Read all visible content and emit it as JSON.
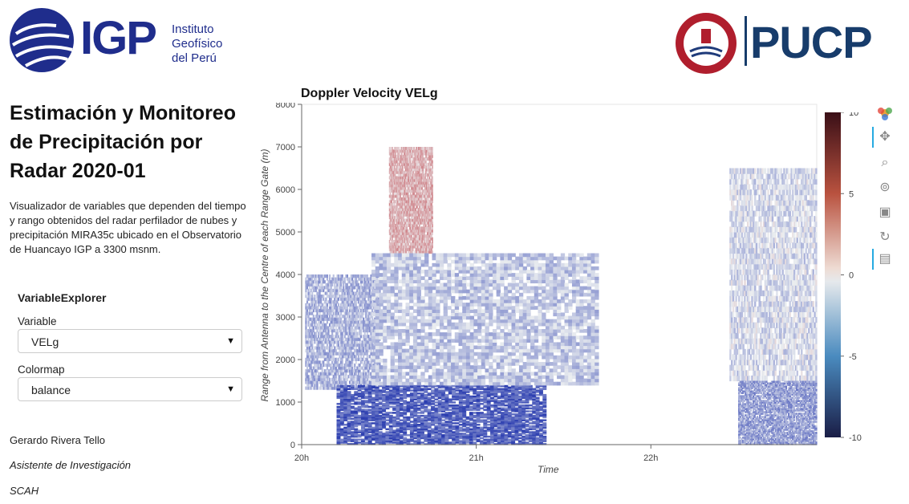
{
  "logos": {
    "igp": {
      "text": "IGP",
      "subtitle_lines": [
        "Instituto",
        "Geofísico",
        "del Perú"
      ]
    },
    "pucp": {
      "text": "PUCP"
    }
  },
  "sidebar": {
    "title": "Estimación y Monitoreo de Precipitación por Radar 2020-01",
    "description": "Visualizador de variables que dependen del tiempo y rango obtenidos del radar perfilador de nubes y precipitación MIRA35c ubicado en el Observatorio de Huancayo IGP a 3300 msnm.",
    "explorer_title": "VariableExplorer",
    "variable": {
      "label": "Variable",
      "value": "VELg"
    },
    "colormap": {
      "label": "Colormap",
      "value": "balance"
    },
    "author": "Gerardo Rivera Tello",
    "role": "Asistente de Investigación",
    "dept": "SCAH"
  },
  "plot": {
    "title": "Doppler Velocity VELg",
    "xlabel": "Time",
    "ylabel": "Range from Antenna to the Centre of each Range Gate (m)"
  },
  "toolbar": {
    "tools": [
      "bokeh-logo-icon",
      "pan-icon",
      "box-zoom-icon",
      "wheel-zoom-icon",
      "save-icon",
      "reset-icon",
      "hover-icon"
    ]
  },
  "chart_data": {
    "type": "heatmap",
    "title": "Doppler Velocity VELg",
    "xlabel": "Time",
    "ylabel": "Range from Antenna to the Centre of each Range Gate (m)",
    "x_ticks": [
      "20h",
      "21h",
      "22h"
    ],
    "x_range_hours": [
      20.0,
      22.95
    ],
    "y_ticks": [
      0,
      1000,
      2000,
      3000,
      4000,
      5000,
      6000,
      7000,
      8000
    ],
    "ylim": [
      0,
      8000
    ],
    "colorbar": {
      "ticks": [
        10,
        5,
        0,
        -5,
        -10
      ],
      "range": [
        -10,
        10
      ],
      "colormap": "balance"
    },
    "grid": true,
    "description_regions": [
      {
        "t0": 20.02,
        "t1": 20.45,
        "z0": 1300,
        "z1": 4000,
        "v": -3
      },
      {
        "t0": 20.2,
        "t1": 21.4,
        "z0": 0,
        "z1": 1400,
        "v": -7
      },
      {
        "t0": 20.5,
        "t1": 20.75,
        "z0": 4500,
        "z1": 7000,
        "v": 3
      },
      {
        "t0": 20.4,
        "t1": 21.7,
        "z0": 1400,
        "z1": 4500,
        "v": -2
      },
      {
        "t0": 22.45,
        "t1": 22.95,
        "z0": 1500,
        "z1": 6500,
        "v": -1
      },
      {
        "t0": 22.5,
        "t1": 22.95,
        "z0": 0,
        "z1": 1500,
        "v": -4
      }
    ]
  }
}
